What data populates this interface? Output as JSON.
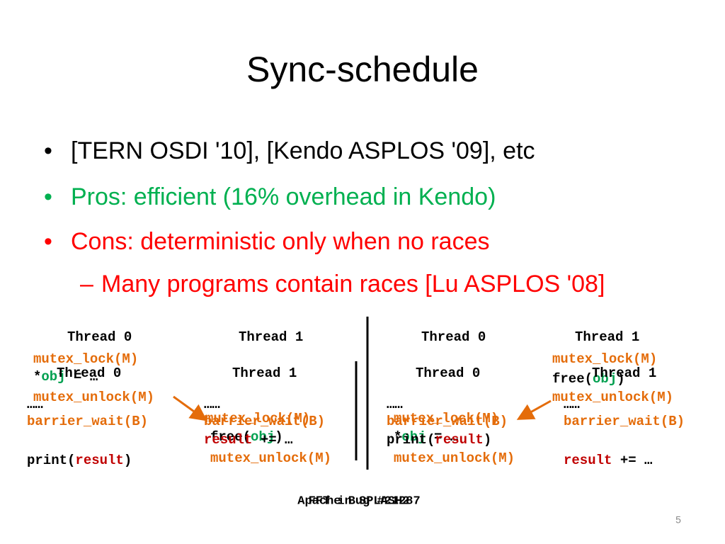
{
  "slide": {
    "title": "Sync-schedule",
    "bullets": [
      {
        "text": "[TERN OSDI '10], [Kendo ASPLOS '09], etc",
        "color": "#000000"
      },
      {
        "text": "Pros: efficient (16% overhead in Kendo)",
        "color": "#00b050"
      },
      {
        "text": "Cons: deterministic only when no races",
        "color": "#ff0000"
      }
    ],
    "sub_bullets": [
      {
        "text": "Many programs contain races [Lu ASPLOS '08]",
        "color": "#ff0000"
      }
    ],
    "code_lines": [
      [
        {
          "text": "Thread 0",
          "color": "#000000"
        }
      ],
      [
        {
          "text": "Thread 1",
          "color": "#000000"
        }
      ],
      [
        {
          "text": "Thread 0",
          "color": "#000000"
        }
      ],
      [
        {
          "text": "Thread 1",
          "color": "#000000"
        }
      ],
      [
        {
          "text": "mutex_lock(M)",
          "color": "#e46c0a"
        }
      ],
      [
        {
          "text": "*",
          "color": "#000000"
        },
        {
          "text": "obj",
          "color": "#00a050"
        },
        {
          "text": " = …",
          "color": "#000000"
        }
      ],
      [
        {
          "text": "mutex_unlock(M)",
          "color": "#e46c0a"
        }
      ],
      [
        {
          "text": "mutex_lock(M)",
          "color": "#e46c0a"
        }
      ],
      [
        {
          "text": "free(",
          "color": "#000000"
        },
        {
          "text": "obj",
          "color": "#00a050"
        },
        {
          "text": ")",
          "color": "#000000"
        }
      ],
      [
        {
          "text": "mutex_unlock(M)",
          "color": "#e46c0a"
        }
      ],
      [
        {
          "text": "mutex_lock(M)",
          "color": "#e46c0a"
        }
      ],
      [
        {
          "text": "*",
          "color": "#000000"
        },
        {
          "text": "obj",
          "color": "#00a050"
        },
        {
          "text": " = …",
          "color": "#000000"
        }
      ],
      [
        {
          "text": "mutex_unlock(M)",
          "color": "#e46c0a"
        }
      ],
      [
        {
          "text": "mutex_lock(M)",
          "color": "#e46c0a"
        }
      ],
      [
        {
          "text": "free(",
          "color": "#000000"
        },
        {
          "text": "obj",
          "color": "#00a050"
        },
        {
          "text": ")",
          "color": "#000000"
        }
      ],
      [
        {
          "text": "mutex_unlock(M)",
          "color": "#e46c0a"
        }
      ],
      [
        {
          "text": "Thread 0",
          "color": "#000000"
        }
      ],
      [
        {
          "text": "Thread 1",
          "color": "#000000"
        }
      ],
      [
        {
          "text": "Thread 0",
          "color": "#000000"
        }
      ],
      [
        {
          "text": "Thread 1",
          "color": "#000000"
        }
      ],
      [
        {
          "text": "……",
          "color": "#000000"
        }
      ],
      [
        {
          "text": "barrier_wait(B)",
          "color": "#e46c0a"
        }
      ],
      [
        {
          "text": "print(",
          "color": "#000000"
        },
        {
          "text": "result",
          "color": "#c00000"
        },
        {
          "text": ")",
          "color": "#000000"
        }
      ],
      [
        {
          "text": "……",
          "color": "#000000"
        }
      ],
      [
        {
          "text": "barrier_wait(B)",
          "color": "#e46c0a"
        }
      ],
      [
        {
          "text": "result",
          "color": "#c00000"
        },
        {
          "text": " += …",
          "color": "#000000"
        }
      ],
      [
        {
          "text": "……",
          "color": "#000000"
        }
      ],
      [
        {
          "text": "barrier_wait(B)",
          "color": "#e46c0a"
        }
      ],
      [
        {
          "text": "print(",
          "color": "#000000"
        },
        {
          "text": "result",
          "color": "#c00000"
        },
        {
          "text": ")",
          "color": "#000000"
        }
      ],
      [
        {
          "text": "……",
          "color": "#000000"
        }
      ],
      [
        {
          "text": "barrier_wait(B)",
          "color": "#e46c0a"
        }
      ],
      [
        {
          "text": "result",
          "color": "#c00000"
        },
        {
          "text": " += …",
          "color": "#000000"
        }
      ]
    ],
    "captions": [
      "Apache Bug #21287",
      "FFT in SPLASH2"
    ],
    "page_number": "5"
  }
}
